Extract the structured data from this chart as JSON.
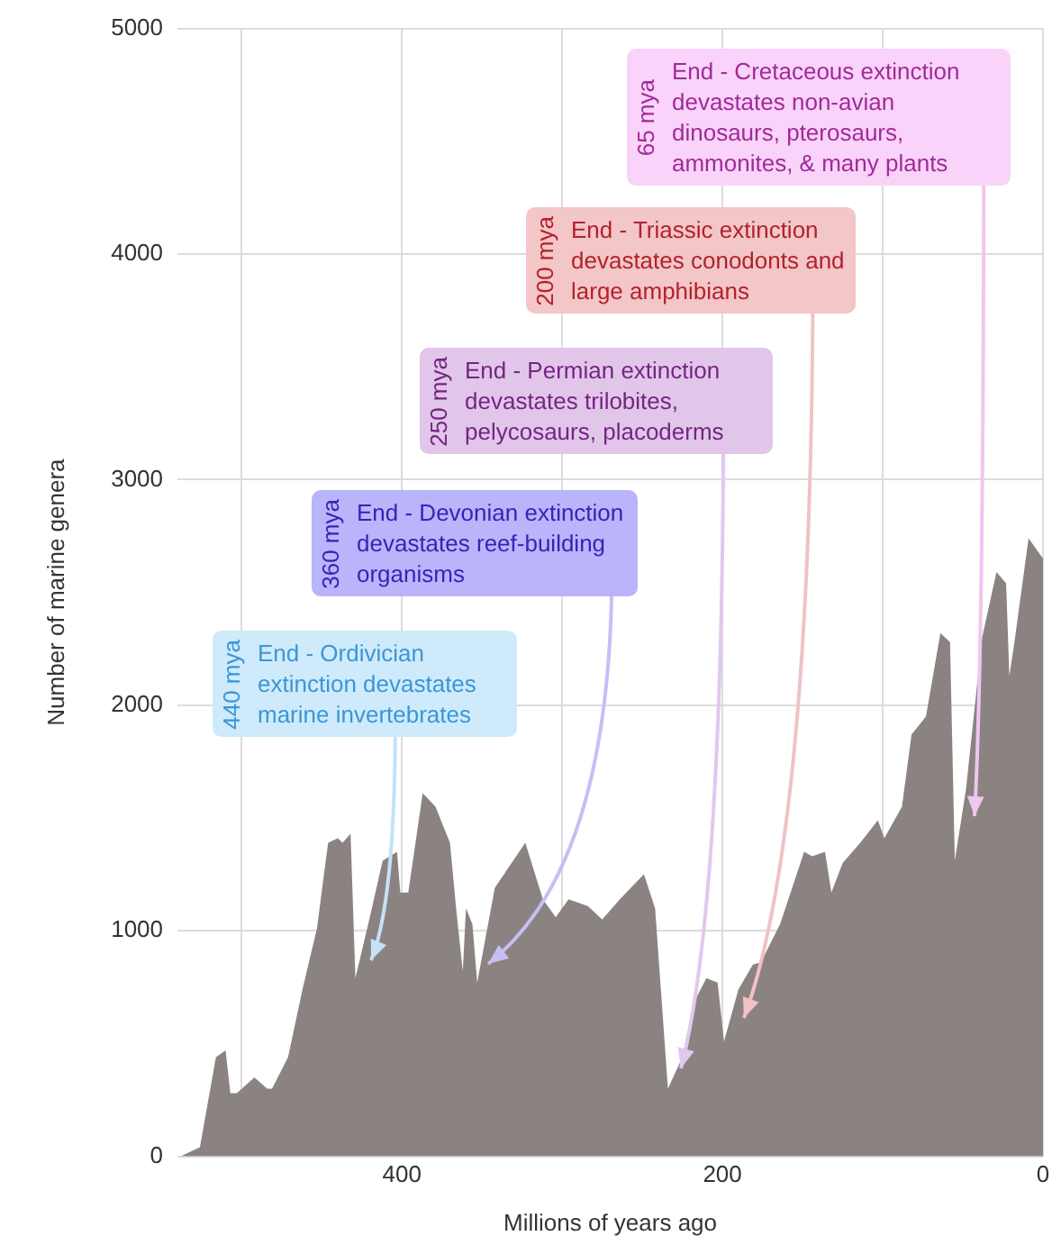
{
  "chart_data": {
    "type": "area",
    "xlabel": "Millions of years ago",
    "ylabel": "Number of marine genera",
    "xlim": [
      540,
      0
    ],
    "xticks": [
      {
        "value": 500,
        "label": null
      },
      400,
      {
        "value": 300,
        "label": null
      },
      200,
      {
        "value": 100,
        "label": null
      },
      0
    ],
    "ylim": [
      0,
      5000
    ],
    "yticks": [
      0,
      1000,
      2000,
      3000,
      4000,
      5000
    ],
    "grid": true,
    "color": "#8b8381",
    "x": [
      538,
      526,
      516,
      510,
      507,
      503,
      492,
      484,
      481,
      471,
      462,
      453,
      446,
      440,
      437,
      432,
      429,
      420,
      412,
      403,
      401,
      396,
      387,
      379,
      370,
      366,
      362,
      360,
      356,
      353,
      342,
      323,
      312,
      304,
      296,
      284,
      275,
      264,
      249,
      242,
      234,
      225,
      218,
      210,
      203,
      199,
      190,
      181,
      176,
      164,
      149,
      144,
      136,
      132,
      125,
      114,
      103,
      99,
      88,
      82,
      73,
      64,
      58,
      55,
      48,
      38,
      29,
      23,
      21,
      18,
      9,
      0
    ],
    "values": [
      0,
      40,
      440,
      470,
      280,
      280,
      350,
      300,
      300,
      440,
      740,
      1010,
      1390,
      1410,
      1390,
      1430,
      790,
      1060,
      1310,
      1350,
      1170,
      1170,
      1610,
      1550,
      1390,
      1090,
      820,
      1100,
      1030,
      770,
      1190,
      1390,
      1140,
      1060,
      1140,
      1110,
      1050,
      1140,
      1250,
      1100,
      300,
      440,
      680,
      790,
      770,
      510,
      740,
      850,
      860,
      1030,
      1350,
      1330,
      1350,
      1170,
      1300,
      1390,
      1490,
      1410,
      1550,
      1870,
      1950,
      2320,
      2280,
      1310,
      1630,
      2300,
      2590,
      2540,
      2130,
      2270,
      2740,
      2650
    ],
    "annotations": [
      "440 mya",
      "End - Ordivician extinction devastates marine invertebrates",
      "360 mya",
      "End - Devonian extinction devastates reef-building organisms",
      "250 mya",
      "End - Permian extinction devastates trilobites, pelycosaurs, placoderms",
      "200 mya",
      "End - Triassic extinction devastates conodonts and large amphibians",
      "65 mya",
      "End - Cretaceous extinction devastates non-avian dinosaurs, pterosaurs, ammonites, & many plants"
    ]
  }
}
